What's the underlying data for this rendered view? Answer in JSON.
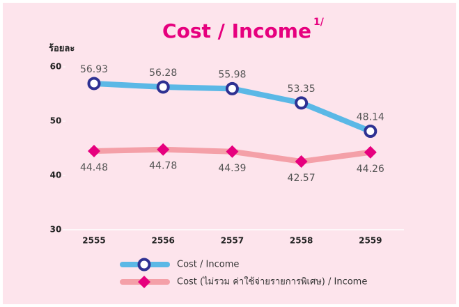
{
  "chart_data": {
    "type": "line",
    "title": "Cost / Income",
    "title_superscript": "1/",
    "y_label": "ร้อยละ",
    "categories": [
      "2555",
      "2556",
      "2557",
      "2558",
      "2559"
    ],
    "series": [
      {
        "name": "Cost / Income",
        "color": "#5bb8e6",
        "marker_color": "#2e3192",
        "values": [
          56.93,
          56.28,
          55.98,
          53.35,
          48.14
        ]
      },
      {
        "name": "Cost (ไม่รวม ค่าใช้จ่ายรายการพิเศษ) / Income",
        "color": "#f4a0a8",
        "marker_color": "#e6007e",
        "values": [
          44.48,
          44.78,
          44.39,
          42.57,
          44.26
        ]
      }
    ],
    "ylim": [
      30,
      60
    ],
    "yticks": [
      30,
      40,
      50,
      60
    ],
    "grid": false
  }
}
